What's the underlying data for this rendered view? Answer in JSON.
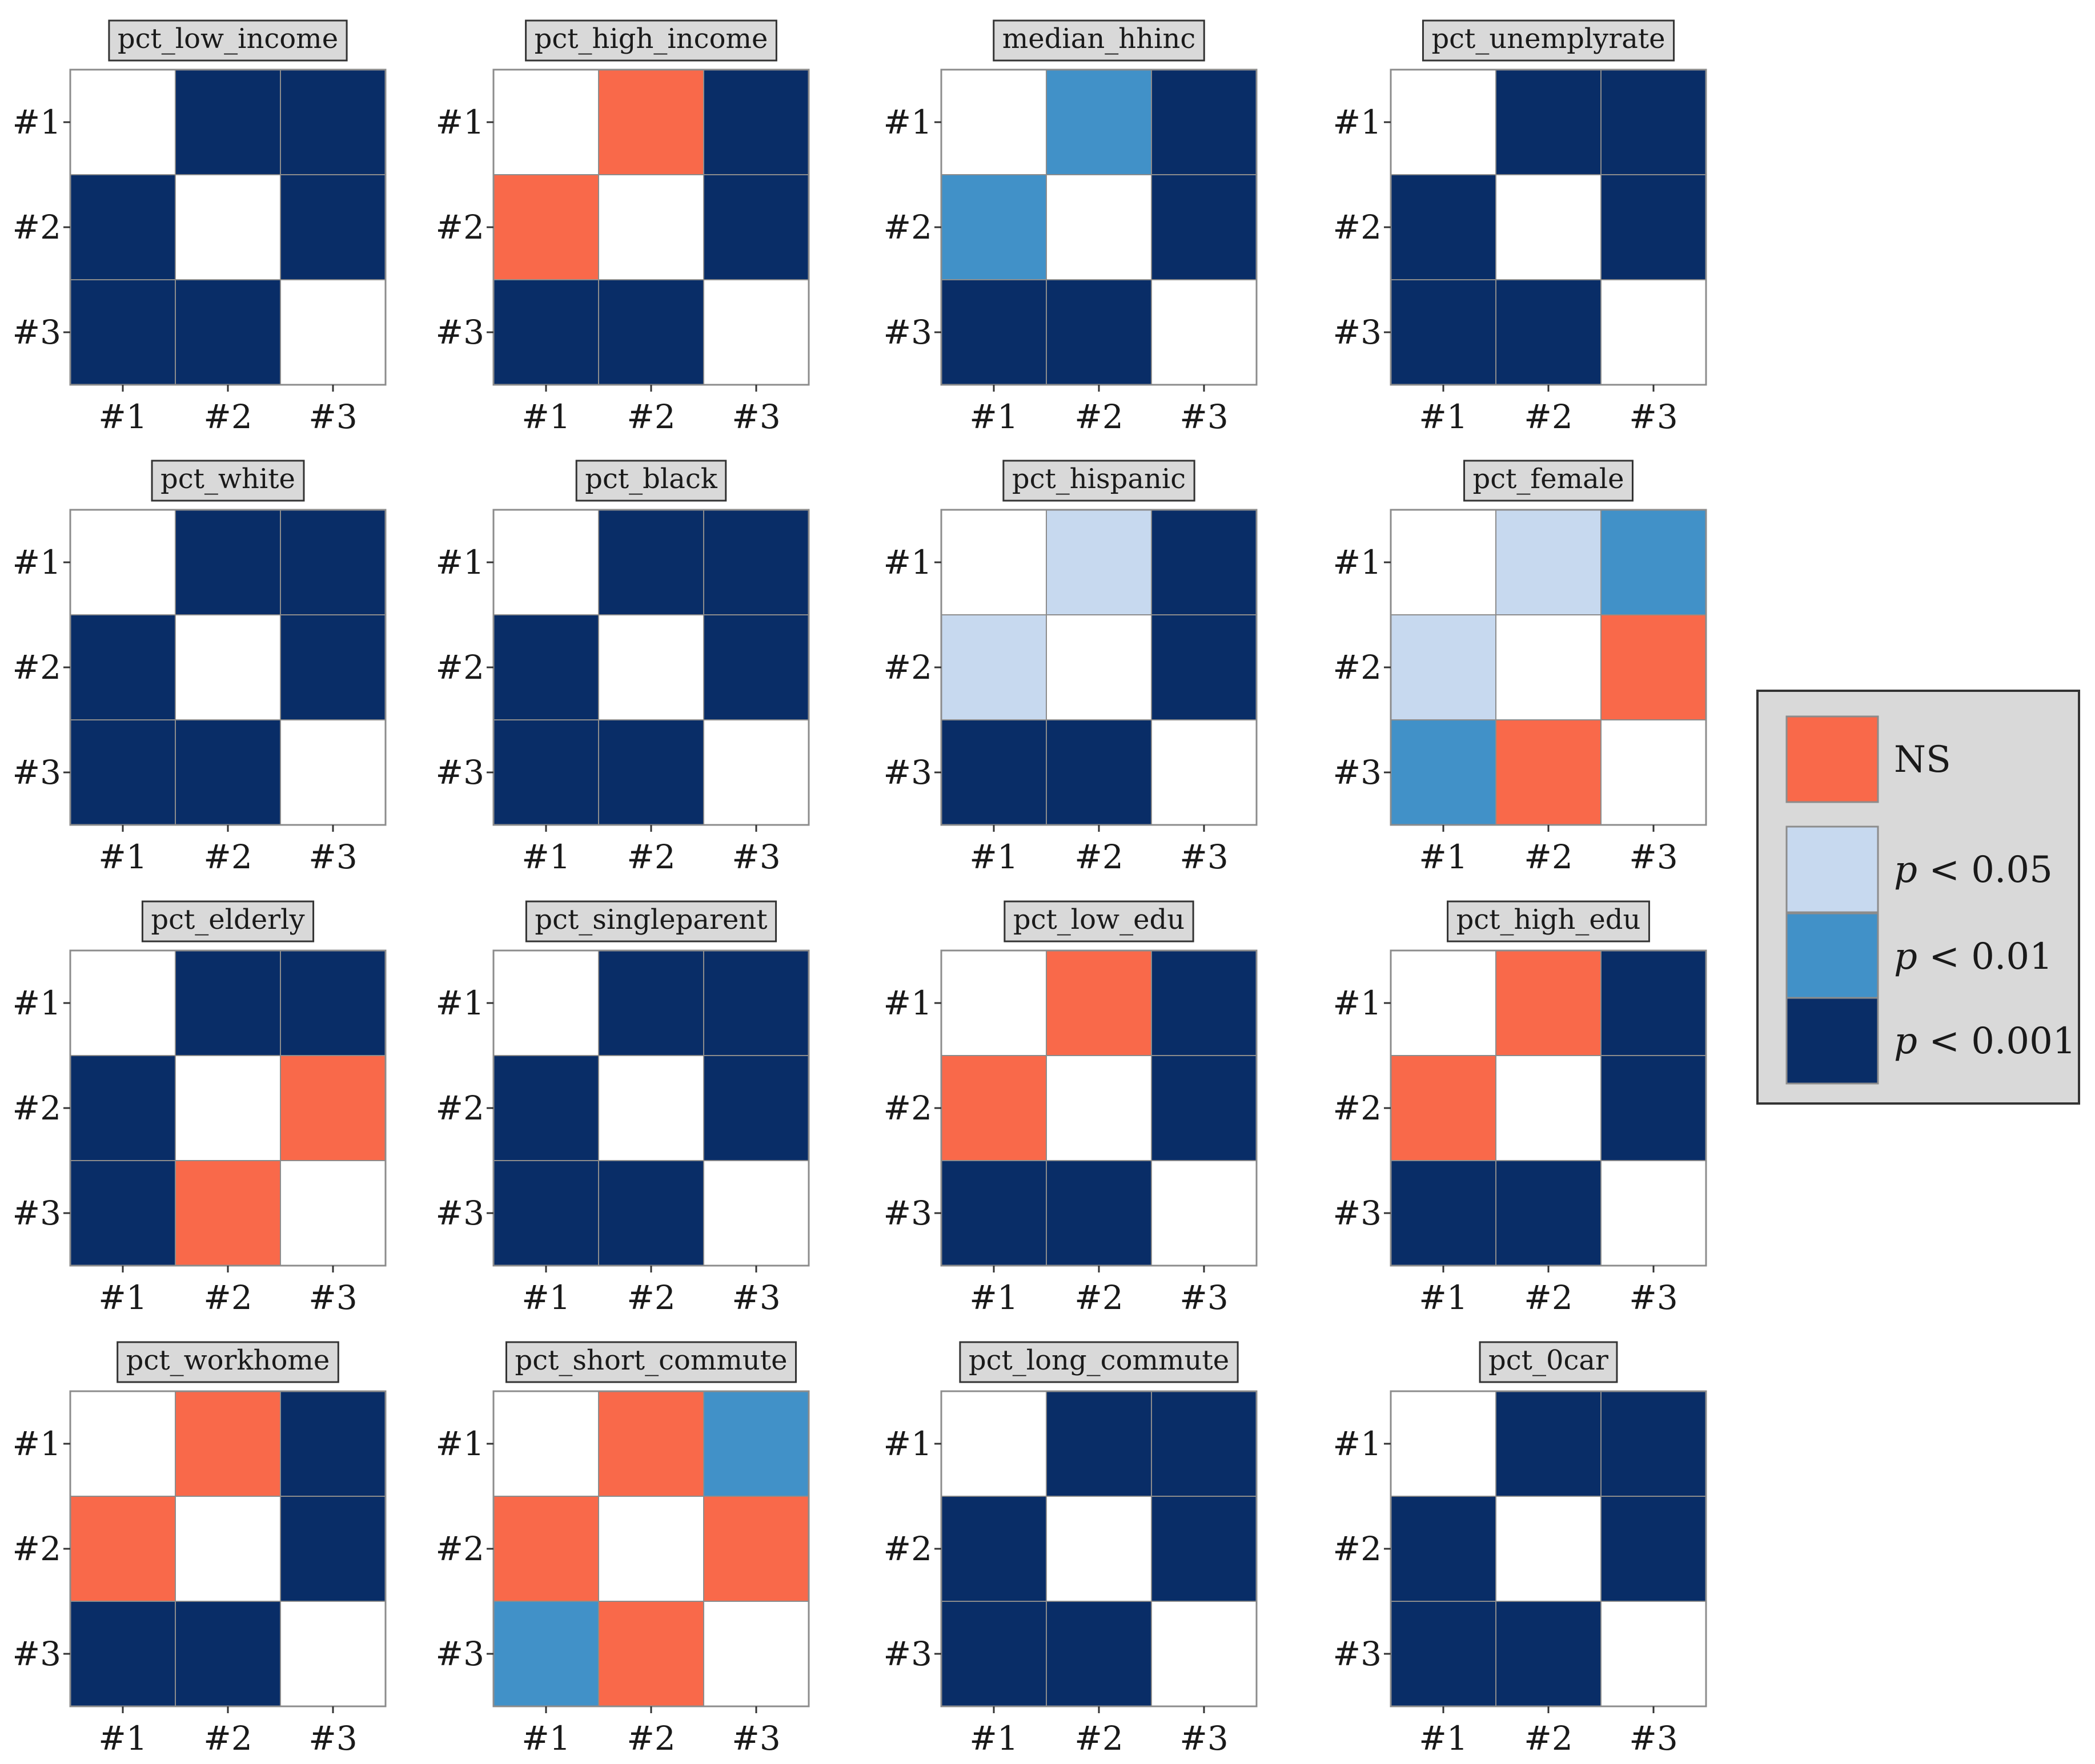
{
  "chart_data": {
    "type": "heatmap",
    "row_labels": [
      "#1",
      "#2",
      "#3"
    ],
    "col_labels": [
      "#1",
      "#2",
      "#3"
    ],
    "legend": {
      "position": "right",
      "categories": [
        {
          "key": "NS",
          "label": "NS",
          "color": "#f9694a"
        },
        {
          "key": "p05",
          "label": "p < 0.05",
          "color": "#c7d9ef"
        },
        {
          "key": "p01",
          "label": "p < 0.01",
          "color": "#4191c8"
        },
        {
          "key": "p001",
          "label": "p < 0.001",
          "color": "#092d67"
        }
      ]
    },
    "panels": [
      {
        "title": "pct_low_income",
        "cells": [
          [
            "",
            "p001",
            "p001"
          ],
          [
            "p001",
            "",
            "p001"
          ],
          [
            "p001",
            "p001",
            ""
          ]
        ]
      },
      {
        "title": "pct_high_income",
        "cells": [
          [
            "",
            "NS",
            "p001"
          ],
          [
            "NS",
            "",
            "p001"
          ],
          [
            "p001",
            "p001",
            ""
          ]
        ]
      },
      {
        "title": "median_hhinc",
        "cells": [
          [
            "",
            "p01",
            "p001"
          ],
          [
            "p01",
            "",
            "p001"
          ],
          [
            "p001",
            "p001",
            ""
          ]
        ]
      },
      {
        "title": "pct_unemplyrate",
        "cells": [
          [
            "",
            "p001",
            "p001"
          ],
          [
            "p001",
            "",
            "p001"
          ],
          [
            "p001",
            "p001",
            ""
          ]
        ]
      },
      {
        "title": "pct_white",
        "cells": [
          [
            "",
            "p001",
            "p001"
          ],
          [
            "p001",
            "",
            "p001"
          ],
          [
            "p001",
            "p001",
            ""
          ]
        ]
      },
      {
        "title": "pct_black",
        "cells": [
          [
            "",
            "p001",
            "p001"
          ],
          [
            "p001",
            "",
            "p001"
          ],
          [
            "p001",
            "p001",
            ""
          ]
        ]
      },
      {
        "title": "pct_hispanic",
        "cells": [
          [
            "",
            "p05",
            "p001"
          ],
          [
            "p05",
            "",
            "p001"
          ],
          [
            "p001",
            "p001",
            ""
          ]
        ]
      },
      {
        "title": "pct_female",
        "cells": [
          [
            "",
            "p05",
            "p01"
          ],
          [
            "p05",
            "",
            "NS"
          ],
          [
            "p01",
            "NS",
            ""
          ]
        ]
      },
      {
        "title": "pct_elderly",
        "cells": [
          [
            "",
            "p001",
            "p001"
          ],
          [
            "p001",
            "",
            "NS"
          ],
          [
            "p001",
            "NS",
            ""
          ]
        ]
      },
      {
        "title": "pct_singleparent",
        "cells": [
          [
            "",
            "p001",
            "p001"
          ],
          [
            "p001",
            "",
            "p001"
          ],
          [
            "p001",
            "p001",
            ""
          ]
        ]
      },
      {
        "title": "pct_low_edu",
        "cells": [
          [
            "",
            "NS",
            "p001"
          ],
          [
            "NS",
            "",
            "p001"
          ],
          [
            "p001",
            "p001",
            ""
          ]
        ]
      },
      {
        "title": "pct_high_edu",
        "cells": [
          [
            "",
            "NS",
            "p001"
          ],
          [
            "NS",
            "",
            "p001"
          ],
          [
            "p001",
            "p001",
            ""
          ]
        ]
      },
      {
        "title": "pct_workhome",
        "cells": [
          [
            "",
            "NS",
            "p001"
          ],
          [
            "NS",
            "",
            "p001"
          ],
          [
            "p001",
            "p001",
            ""
          ]
        ]
      },
      {
        "title": "pct_short_commute",
        "cells": [
          [
            "",
            "NS",
            "p01"
          ],
          [
            "NS",
            "",
            "NS"
          ],
          [
            "p01",
            "NS",
            ""
          ]
        ]
      },
      {
        "title": "pct_long_commute",
        "cells": [
          [
            "",
            "p001",
            "p001"
          ],
          [
            "p001",
            "",
            "p001"
          ],
          [
            "p001",
            "p001",
            ""
          ]
        ]
      },
      {
        "title": "pct_0car",
        "cells": [
          [
            "",
            "p001",
            "p001"
          ],
          [
            "p001",
            "",
            "p001"
          ],
          [
            "p001",
            "p001",
            ""
          ]
        ]
      }
    ]
  }
}
